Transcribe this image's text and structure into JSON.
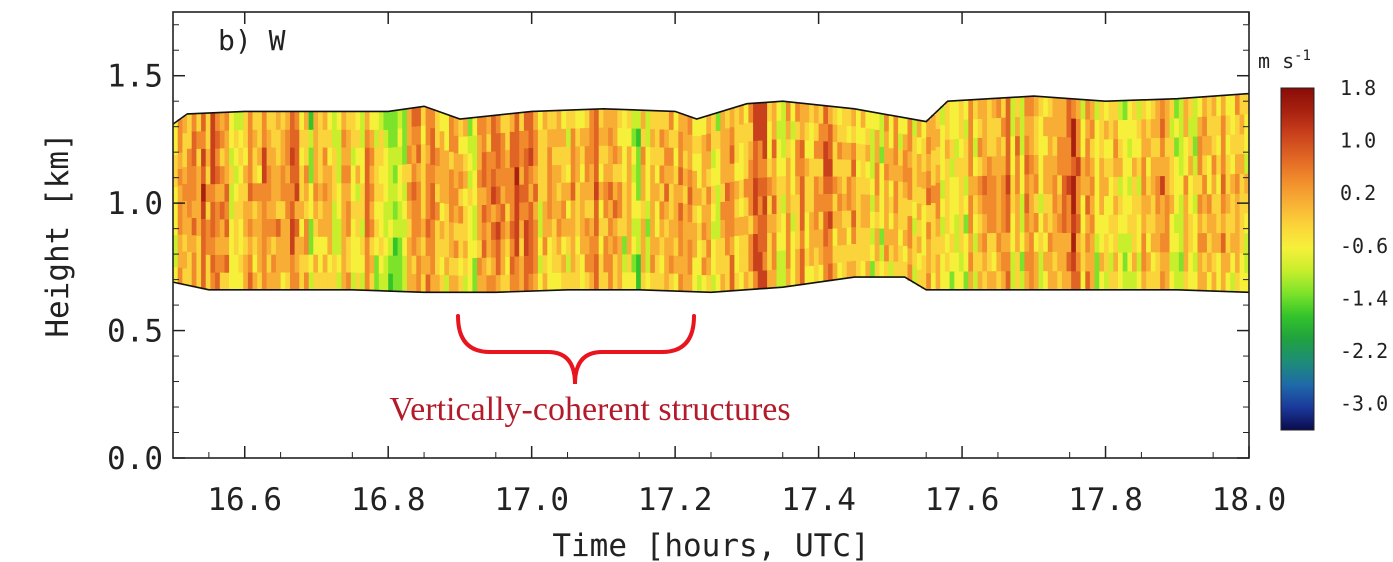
{
  "chart_data": {
    "type": "heatmap",
    "panel_label": "b) W",
    "xlabel": "Time [hours, UTC]",
    "ylabel": "Height [km]",
    "xlim": [
      16.5,
      18.0
    ],
    "ylim": [
      0.0,
      1.75
    ],
    "x_ticks": [
      "16.6",
      "16.8",
      "17.0",
      "17.2",
      "17.4",
      "17.6",
      "17.8",
      "18.0"
    ],
    "x_tick_values": [
      16.6,
      16.8,
      17.0,
      17.2,
      17.4,
      17.6,
      17.8,
      18.0
    ],
    "y_ticks": [
      "0.0",
      "0.5",
      "1.0",
      "1.5"
    ],
    "y_tick_values": [
      0.0,
      0.5,
      1.0,
      1.5
    ],
    "colorbar": {
      "unit": "m s",
      "unit_exponent": "-1",
      "min": -3.4,
      "max": 1.8,
      "tick_labels": [
        "1.8",
        "1.0",
        "0.2",
        "-0.6",
        "-1.4",
        "-2.2",
        "-3.0"
      ],
      "tick_values": [
        1.8,
        1.0,
        0.2,
        -0.6,
        -1.4,
        -2.2,
        -3.0
      ],
      "colors": [
        "#0b0b4e",
        "#1b3a9c",
        "#1f6aa8",
        "#1d8d78",
        "#21a23e",
        "#33c42b",
        "#7de32a",
        "#c8ee2c",
        "#f6f03a",
        "#fbd33a",
        "#f8ae34",
        "#f08a2c",
        "#e06424",
        "#c8401c",
        "#a8210f",
        "#8a0c08"
      ]
    },
    "cloud_top_km": [
      [
        16.5,
        1.31
      ],
      [
        16.52,
        1.35
      ],
      [
        16.6,
        1.36
      ],
      [
        16.7,
        1.36
      ],
      [
        16.8,
        1.36
      ],
      [
        16.85,
        1.38
      ],
      [
        16.9,
        1.33
      ],
      [
        17.0,
        1.36
      ],
      [
        17.1,
        1.37
      ],
      [
        17.2,
        1.36
      ],
      [
        17.23,
        1.33
      ],
      [
        17.3,
        1.39
      ],
      [
        17.35,
        1.4
      ],
      [
        17.45,
        1.37
      ],
      [
        17.55,
        1.32
      ],
      [
        17.58,
        1.4
      ],
      [
        17.7,
        1.42
      ],
      [
        17.8,
        1.4
      ],
      [
        17.9,
        1.41
      ],
      [
        18.0,
        1.43
      ]
    ],
    "cloud_base_km": [
      [
        16.5,
        0.69
      ],
      [
        16.55,
        0.66
      ],
      [
        16.65,
        0.66
      ],
      [
        16.75,
        0.66
      ],
      [
        16.85,
        0.65
      ],
      [
        16.95,
        0.65
      ],
      [
        17.05,
        0.66
      ],
      [
        17.15,
        0.66
      ],
      [
        17.25,
        0.65
      ],
      [
        17.35,
        0.67
      ],
      [
        17.45,
        0.71
      ],
      [
        17.52,
        0.71
      ],
      [
        17.55,
        0.66
      ],
      [
        17.6,
        0.66
      ],
      [
        17.7,
        0.66
      ],
      [
        17.8,
        0.66
      ],
      [
        17.9,
        0.66
      ],
      [
        18.0,
        0.65
      ]
    ],
    "annotation": {
      "text": "Vertically-coherent structures",
      "x_range": [
        16.9,
        17.23
      ]
    }
  }
}
